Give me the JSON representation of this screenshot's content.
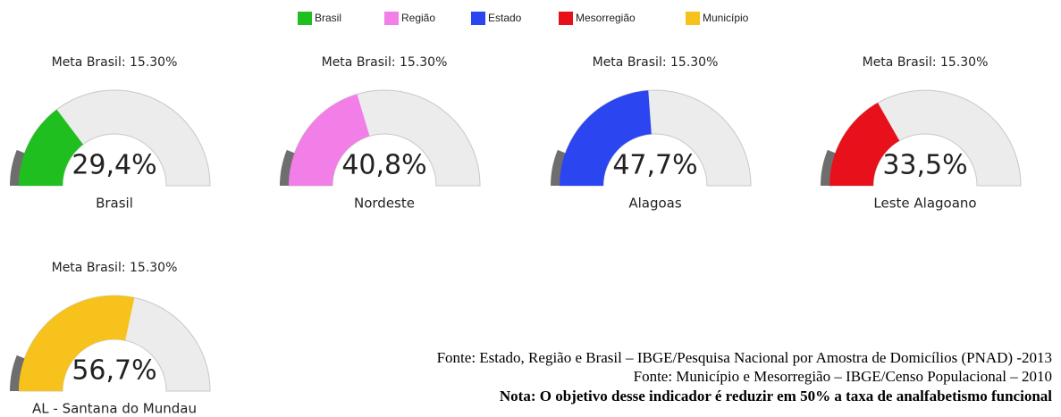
{
  "chart_data": [
    {
      "type": "gauge",
      "title": "Meta Brasil: 15.30%",
      "value": 29.4,
      "value_label": "29,4%",
      "label": "Brasil",
      "color": "#1fbf1f",
      "target": 15.3,
      "ylim": [
        0,
        100
      ]
    },
    {
      "type": "gauge",
      "title": "Meta Brasil: 15.30%",
      "value": 40.8,
      "value_label": "40,8%",
      "label": "Nordeste",
      "color": "#f27ee8",
      "target": 15.3,
      "ylim": [
        0,
        100
      ]
    },
    {
      "type": "gauge",
      "title": "Meta Brasil: 15.30%",
      "value": 47.7,
      "value_label": "47,7%",
      "label": "Alagoas",
      "color": "#2b45f0",
      "target": 15.3,
      "ylim": [
        0,
        100
      ]
    },
    {
      "type": "gauge",
      "title": "Meta Brasil: 15.30%",
      "value": 33.5,
      "value_label": "33,5%",
      "label": "Leste Alagoano",
      "color": "#e8101a",
      "target": 15.3,
      "ylim": [
        0,
        100
      ]
    },
    {
      "type": "gauge",
      "title": "Meta Brasil: 15.30%",
      "value": 56.7,
      "value_label": "56,7%",
      "label": "AL - Santana do Mundau",
      "color": "#f8c21c",
      "target": 15.3,
      "ylim": [
        0,
        100
      ]
    }
  ],
  "legend": [
    {
      "name": "Brasil",
      "color": "#1fbf1f"
    },
    {
      "name": "Região",
      "color": "#f27ee8"
    },
    {
      "name": "Estado",
      "color": "#2b45f0"
    },
    {
      "name": "Mesorregião",
      "color": "#e8101a"
    },
    {
      "name": "Município",
      "color": "#f8c21c"
    }
  ],
  "footnotes": [
    "Fonte: Estado, Região e Brasil – IBGE/Pesquisa Nacional por Amostra de Domicílios (PNAD) -2013",
    "Fonte: Município e Mesorregião – IBGE/Censo Populacional – 2010"
  ],
  "note": "Nota: O objetivo desse indicador é reduzir em 50% a taxa de analfabetismo funcional"
}
